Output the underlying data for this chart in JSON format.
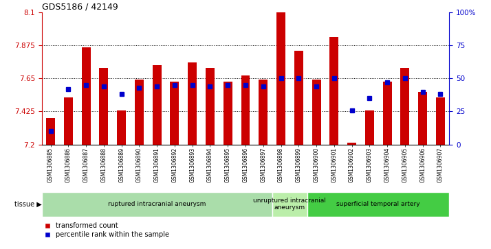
{
  "title": "GDS5186 / 42149",
  "samples": [
    "GSM1306885",
    "GSM1306886",
    "GSM1306887",
    "GSM1306888",
    "GSM1306889",
    "GSM1306890",
    "GSM1306891",
    "GSM1306892",
    "GSM1306893",
    "GSM1306894",
    "GSM1306895",
    "GSM1306896",
    "GSM1306897",
    "GSM1306898",
    "GSM1306899",
    "GSM1306900",
    "GSM1306901",
    "GSM1306902",
    "GSM1306903",
    "GSM1306904",
    "GSM1306905",
    "GSM1306906",
    "GSM1306907"
  ],
  "red_values": [
    7.38,
    7.52,
    7.86,
    7.72,
    7.43,
    7.64,
    7.74,
    7.63,
    7.76,
    7.72,
    7.63,
    7.67,
    7.64,
    8.1,
    7.84,
    7.64,
    7.93,
    7.21,
    7.43,
    7.63,
    7.72,
    7.56,
    7.52
  ],
  "blue_values": [
    10,
    42,
    45,
    44,
    38,
    43,
    44,
    45,
    45,
    44,
    45,
    45,
    44,
    50,
    50,
    44,
    50,
    26,
    35,
    47,
    50,
    40,
    38
  ],
  "ylim_left": [
    7.2,
    8.1
  ],
  "ylim_right": [
    0,
    100
  ],
  "yticks_left": [
    7.2,
    7.425,
    7.65,
    7.875,
    8.1
  ],
  "yticks_right": [
    0,
    25,
    50,
    75,
    100
  ],
  "ytick_labels_right": [
    "0",
    "25",
    "50",
    "75",
    "100%"
  ],
  "bar_color": "#CC0000",
  "dot_color": "#0000CC",
  "bg_color": "#F0F0F0",
  "tissue_groups": [
    {
      "label": "ruptured intracranial aneurysm",
      "start": 0,
      "end": 12,
      "color": "#AADDAA"
    },
    {
      "label": "unruptured intracranial\naneurysm",
      "start": 13,
      "end": 14,
      "color": "#BBEEAA"
    },
    {
      "label": "superficial temporal artery",
      "start": 15,
      "end": 22,
      "color": "#44CC44"
    }
  ]
}
